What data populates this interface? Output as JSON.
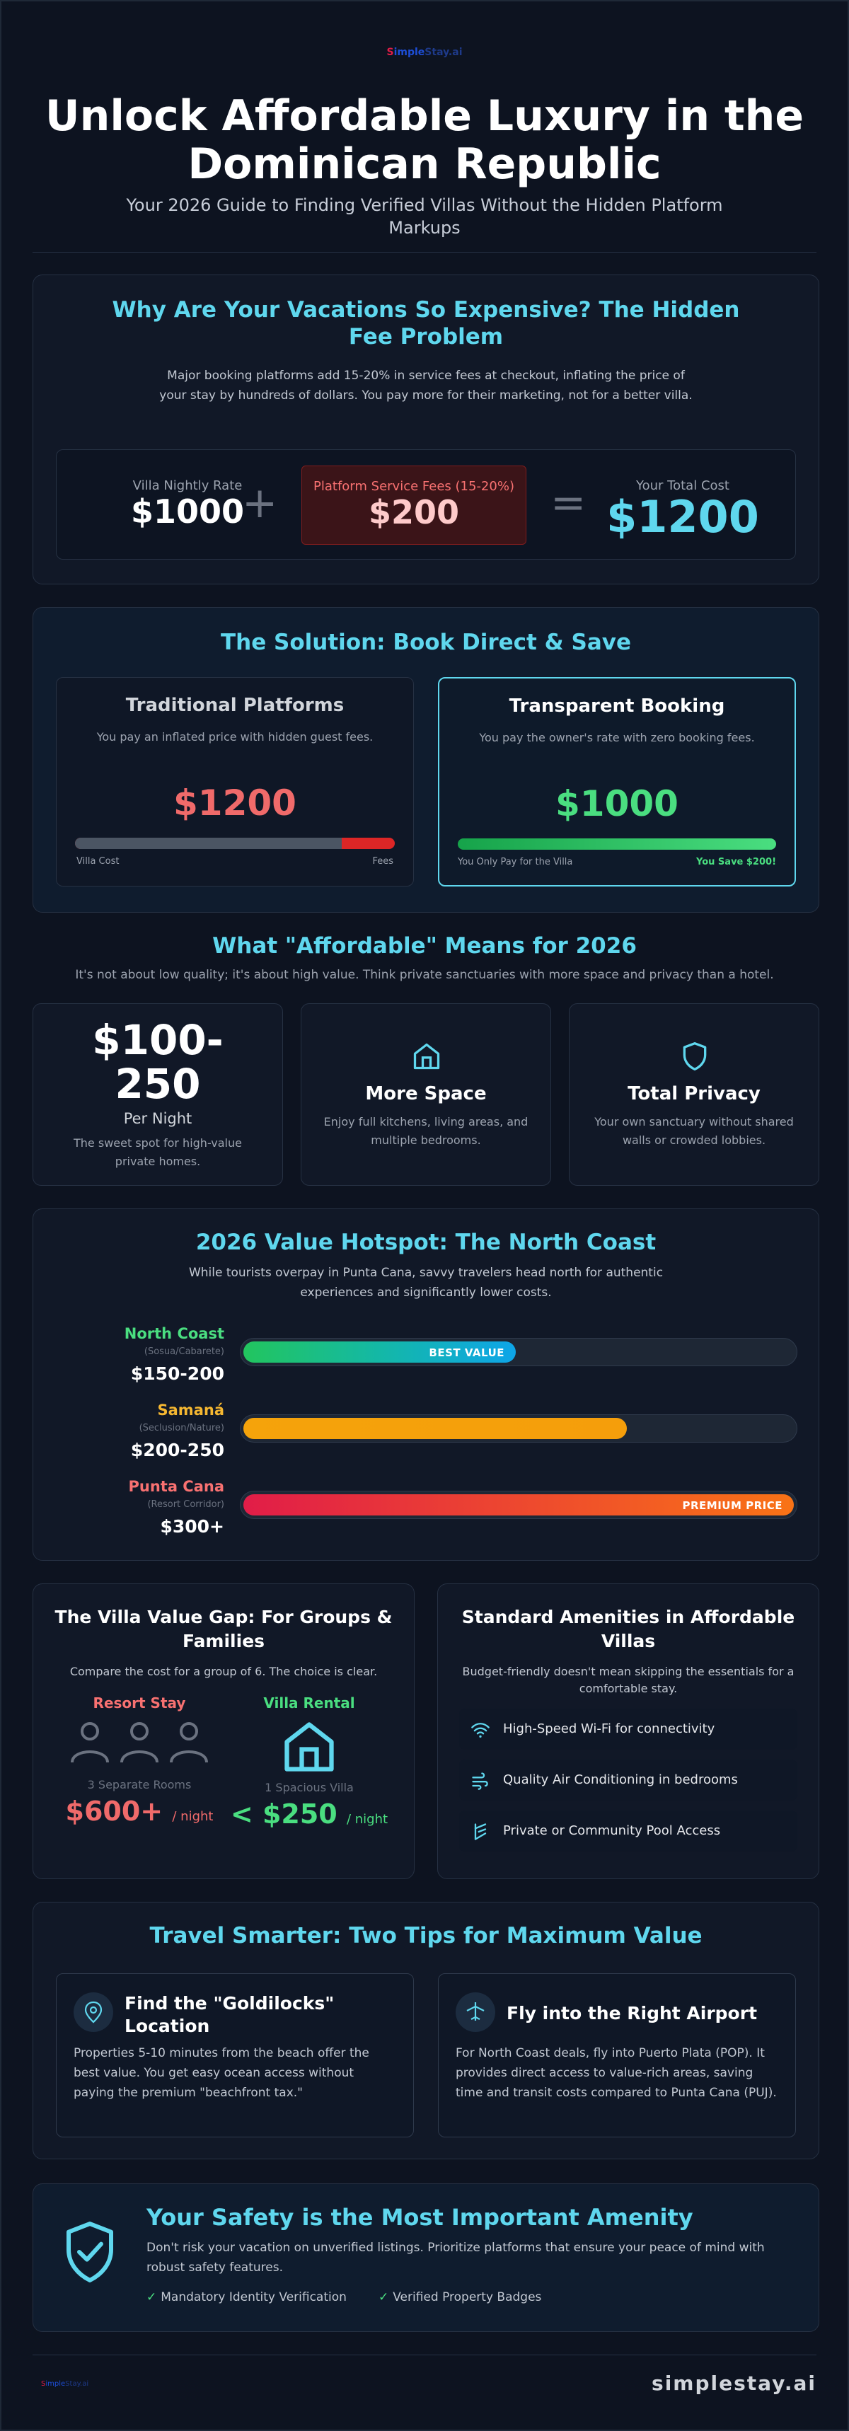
{
  "header": {
    "logo_parts": [
      "S",
      "imple",
      "Stay.ai"
    ],
    "title": "Unlock Affordable Luxury in the Dominican Republic",
    "subtitle": "Your 2026 Guide to Finding Verified Villas Without the Hidden Platform Markups"
  },
  "fee_problem": {
    "title": "Why Are Your Vacations So Expensive? The Hidden Fee Problem",
    "description": "Major booking platforms add 15-20% in service fees at checkout, inflating the price of your stay by hundreds of dollars. You pay more for their marketing, not for a better villa.",
    "rate_label": "Villa Nightly Rate",
    "rate_value": "$1000",
    "plus": "+",
    "fee_label": "Platform Service Fees (15-20%)",
    "fee_value": "$200",
    "equals": "=",
    "total_label": "Your Total Cost",
    "total_value": "$1200"
  },
  "solution": {
    "title": "The Solution: Book Direct & Save",
    "traditional": {
      "heading": "Traditional Platforms",
      "description": "You pay an inflated price with hidden guest fees.",
      "price": "$1200",
      "villa_cost_fraction": 0.833,
      "left_label": "Villa Cost",
      "right_label": "Fees"
    },
    "transparent": {
      "heading": "Transparent Booking",
      "description": "You pay the owner's rate with zero booking fees.",
      "price": "$1000",
      "fill_fraction": 1.0,
      "left_label": "You Only Pay for the Villa",
      "right_label": "You Save $200!"
    }
  },
  "affordable": {
    "title": "What \"Affordable\" Means for 2026",
    "subtitle": "It's not about low quality; it's about high value. Think private sanctuaries with more space and privacy than a hotel.",
    "cards": [
      {
        "big": "$100-250",
        "label": "Per Night",
        "description": "The sweet spot for high-value private homes."
      },
      {
        "icon": "home-icon",
        "heading": "More Space",
        "description": "Enjoy full kitchens, living areas, and multiple bedrooms."
      },
      {
        "icon": "shield-icon",
        "heading": "Total Privacy",
        "description": "Your own sanctuary without shared walls or crowded lobbies."
      }
    ]
  },
  "hotspot": {
    "title": "2026 Value Hotspot: The North Coast",
    "description": "While tourists overpay in Punta Cana, savvy travelers head north for authentic experiences and significantly lower costs.",
    "rows": [
      {
        "name": "North Coast",
        "area": "(Sosua/Cabarete)",
        "price": "$150-200",
        "fraction": 0.5,
        "tag": "BEST VALUE",
        "color": "#4ade80"
      },
      {
        "name": "Samaná",
        "area": "(Seclusion/Nature)",
        "price": "$200-250",
        "fraction": 0.7,
        "tag": "",
        "color": "#f5b731"
      },
      {
        "name": "Punta Cana",
        "area": "(Resort Corridor)",
        "price": "$300+",
        "fraction": 1.0,
        "tag": "PREMIUM PRICE",
        "color": "#f87171"
      }
    ]
  },
  "value_gap": {
    "title": "The Villa Value Gap: For Groups & Families",
    "subtitle": "Compare the cost for a group of 6. The choice is clear.",
    "resort": {
      "heading": "Resort Stay",
      "caption": "3 Separate Rooms",
      "price": "$600+",
      "unit": "/ night"
    },
    "villa": {
      "heading": "Villa Rental",
      "caption": "1 Spacious Villa",
      "price": "< $250",
      "unit": "/ night"
    }
  },
  "amenities": {
    "title": "Standard Amenities in Affordable Villas",
    "subtitle": "Budget-friendly doesn't mean skipping the essentials for a comfortable stay.",
    "items": [
      {
        "icon": "wifi-icon",
        "label": "High-Speed Wi-Fi for connectivity"
      },
      {
        "icon": "air-conditioning-icon",
        "label": "Quality Air Conditioning in bedrooms"
      },
      {
        "icon": "pool-icon",
        "label": "Private or Community Pool Access"
      }
    ]
  },
  "tips": {
    "title": "Travel Smarter: Two Tips for Maximum Value",
    "items": [
      {
        "icon": "location-pin-icon",
        "heading": "Find the \"Goldilocks\" Location",
        "description": "Properties 5-10 minutes from the beach offer the best value. You get easy ocean access without paying the premium \"beachfront tax.\""
      },
      {
        "icon": "airplane-icon",
        "heading": "Fly into the Right Airport",
        "description": "For North Coast deals, fly into Puerto Plata (POP). It provides direct access to value-rich areas, saving time and transit costs compared to Punta Cana (PUJ)."
      }
    ]
  },
  "safety": {
    "title": "Your Safety is the Most Important Amenity",
    "description": "Don't risk your vacation on unverified listings. Prioritize platforms that ensure your peace of mind with robust safety features.",
    "checks": [
      "Mandatory Identity Verification",
      "Verified Property Badges"
    ]
  },
  "footer": {
    "brand": "simplestay.ai"
  },
  "colors": {
    "accent": "#5fd7ee",
    "background": "#0d1320",
    "danger": "#f87171",
    "success": "#4ade80"
  }
}
